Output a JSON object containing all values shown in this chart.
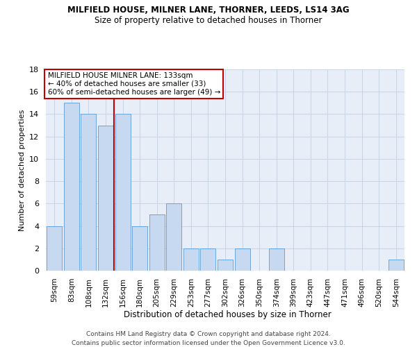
{
  "title1": "MILFIELD HOUSE, MILNER LANE, THORNER, LEEDS, LS14 3AG",
  "title2": "Size of property relative to detached houses in Thorner",
  "xlabel": "Distribution of detached houses by size in Thorner",
  "ylabel": "Number of detached properties",
  "categories": [
    "59sqm",
    "83sqm",
    "108sqm",
    "132sqm",
    "156sqm",
    "180sqm",
    "205sqm",
    "229sqm",
    "253sqm",
    "277sqm",
    "302sqm",
    "326sqm",
    "350sqm",
    "374sqm",
    "399sqm",
    "423sqm",
    "447sqm",
    "471sqm",
    "496sqm",
    "520sqm",
    "544sqm"
  ],
  "values": [
    4,
    15,
    14,
    13,
    14,
    4,
    5,
    6,
    2,
    2,
    1,
    2,
    0,
    2,
    0,
    0,
    0,
    0,
    0,
    0,
    1
  ],
  "bar_color": "#c6d9f0",
  "bar_edge_color": "#5b9bd5",
  "vline_x_index": 3.5,
  "vline_color": "#c00000",
  "annotation_title": "MILFIELD HOUSE MILNER LANE: 133sqm",
  "annotation_line1": "← 40% of detached houses are smaller (33)",
  "annotation_line2": "60% of semi-detached houses are larger (49) →",
  "annotation_box_color": "#c00000",
  "ylim": [
    0,
    18
  ],
  "yticks": [
    0,
    2,
    4,
    6,
    8,
    10,
    12,
    14,
    16,
    18
  ],
  "footer1": "Contains HM Land Registry data © Crown copyright and database right 2024.",
  "footer2": "Contains public sector information licensed under the Open Government Licence v3.0.",
  "bg_color": "#ffffff",
  "plot_bg_color": "#e8eef8",
  "grid_color": "#c8d4e8"
}
